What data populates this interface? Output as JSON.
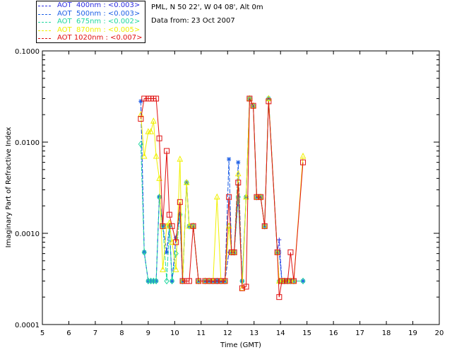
{
  "header": {
    "site": "PML, N 50 22', W 04 08', Alt 0m",
    "date": "Data from: 23 Oct 2007"
  },
  "legend": [
    {
      "label": "AOT  400nm : <0.003>",
      "color": "#2b2be0"
    },
    {
      "label": "AOT  500nm : <0.003>",
      "color": "#1e60e6"
    },
    {
      "label": "AOT  675nm : <0.002>",
      "color": "#20d8a0"
    },
    {
      "label": "AOT  870nm : <0.005>",
      "color": "#f0f000"
    },
    {
      "label": "AOT 1020nm : <0.007>",
      "color": "#e01010"
    }
  ],
  "chart_data": {
    "type": "line",
    "title": "",
    "xlabel": "Time (GMT)",
    "ylabel": "Imaginary Part of Refractive Index",
    "xlim": [
      5,
      20
    ],
    "ylim": [
      0.0001,
      0.1
    ],
    "yscale": "log",
    "xticks": [
      5,
      6,
      7,
      8,
      9,
      10,
      11,
      12,
      13,
      14,
      15,
      16,
      17,
      18,
      19,
      20
    ],
    "yticks": [
      {
        "value": 0.0001,
        "label": "0.0001"
      },
      {
        "value": 0.001,
        "label": "0.0010"
      },
      {
        "value": 0.01,
        "label": "0.0100"
      },
      {
        "value": 0.1,
        "label": "0.1000"
      }
    ],
    "grid": false,
    "legend_position": "above-left",
    "series": [
      {
        "name": "AOT  400nm : <0.003>",
        "color": "#2b2be0",
        "marker": "plus",
        "x": [
          8.72,
          8.85,
          9.0,
          9.1,
          9.2,
          9.3,
          9.42,
          9.55,
          9.7,
          9.8,
          9.9,
          10.05,
          10.2,
          10.3,
          10.45,
          10.55,
          10.7,
          10.9,
          11.15,
          11.3,
          11.45,
          11.6,
          11.75,
          11.9,
          12.05,
          12.15,
          12.25,
          12.4,
          12.55,
          12.7,
          12.83,
          12.97,
          13.1,
          13.25,
          13.4,
          13.55,
          13.88,
          13.95,
          14.05,
          14.15,
          14.27,
          14.38,
          14.5,
          14.85
        ],
        "y": [
          0.028,
          0.00062,
          0.0003,
          0.0003,
          0.0003,
          0.0003,
          0.0025,
          0.0012,
          0.00062,
          0.0012,
          0.0003,
          0.0009,
          0.0016,
          0.0003,
          0.0036,
          0.0012,
          0.0012,
          0.0003,
          0.0003,
          0.0003,
          0.0003,
          0.0003,
          0.0003,
          0.0003,
          0.00062,
          0.00062,
          0.00062,
          0.0025,
          0.0003,
          0.0025,
          0.03,
          0.025,
          0.0025,
          0.0025,
          0.0012,
          0.03,
          0.00062,
          0.00085,
          0.0003,
          0.0003,
          0.0003,
          0.0003,
          0.0003,
          0.0003
        ]
      },
      {
        "name": "AOT  500nm : <0.003>",
        "color": "#1e60e6",
        "marker": "asterisk",
        "x": [
          8.72,
          8.85,
          9.0,
          9.1,
          9.2,
          9.3,
          9.42,
          9.55,
          9.7,
          9.8,
          9.9,
          10.05,
          10.2,
          10.3,
          10.45,
          10.55,
          10.7,
          10.9,
          11.15,
          11.3,
          11.45,
          11.6,
          11.75,
          11.9,
          12.05,
          12.15,
          12.25,
          12.4,
          12.55,
          12.7,
          12.83,
          12.97,
          13.1,
          13.25,
          13.4,
          13.55,
          13.88,
          13.95,
          14.05,
          14.15,
          14.27,
          14.38,
          14.5,
          14.85
        ],
        "y": [
          0.028,
          0.00062,
          0.0003,
          0.0003,
          0.0003,
          0.0003,
          0.0025,
          0.0012,
          0.00062,
          0.0012,
          0.0003,
          0.0009,
          0.0016,
          0.0003,
          0.0036,
          0.0012,
          0.0012,
          0.0003,
          0.0003,
          0.0003,
          0.0003,
          0.0003,
          0.0003,
          0.0003,
          0.0065,
          0.00062,
          0.00062,
          0.006,
          0.0003,
          0.0025,
          0.03,
          0.025,
          0.0025,
          0.0025,
          0.0012,
          0.03,
          0.00062,
          0.00062,
          0.0003,
          0.0003,
          0.0003,
          0.0003,
          0.0003,
          0.0003
        ]
      },
      {
        "name": "AOT  675nm : <0.002>",
        "color": "#20d8a0",
        "marker": "diamond",
        "x": [
          8.72,
          8.85,
          9.0,
          9.1,
          9.2,
          9.3,
          9.42,
          9.55,
          9.7,
          9.8,
          9.9,
          10.05,
          10.2,
          10.3,
          10.45,
          10.55,
          10.7,
          10.9,
          11.15,
          11.3,
          11.45,
          11.6,
          11.75,
          11.9,
          12.05,
          12.15,
          12.25,
          12.4,
          12.55,
          12.7,
          12.83,
          12.97,
          13.1,
          13.25,
          13.4,
          13.55,
          13.88,
          13.95,
          14.05,
          14.15,
          14.27,
          14.38,
          14.5,
          14.85
        ],
        "y": [
          0.0095,
          0.00062,
          0.0003,
          0.0003,
          0.0003,
          0.0003,
          0.0025,
          0.0012,
          0.0003,
          0.0012,
          0.0003,
          0.0006,
          0.0016,
          0.0003,
          0.0036,
          0.0012,
          0.0012,
          0.0003,
          0.0003,
          0.0003,
          0.0003,
          0.0003,
          0.0003,
          0.0003,
          0.0012,
          0.00062,
          0.00062,
          0.0025,
          0.0003,
          0.0025,
          0.03,
          0.025,
          0.0025,
          0.0025,
          0.0012,
          0.03,
          0.00062,
          0.0003,
          0.0003,
          0.0003,
          0.0003,
          0.0003,
          0.0003,
          0.0003
        ]
      },
      {
        "name": "AOT  870nm : <0.005>",
        "color": "#f0f000",
        "marker": "triangle",
        "x": [
          8.72,
          8.85,
          9.0,
          9.1,
          9.2,
          9.3,
          9.42,
          9.55,
          9.7,
          9.8,
          9.9,
          10.05,
          10.2,
          10.3,
          10.45,
          10.55,
          10.7,
          10.9,
          11.15,
          11.3,
          11.45,
          11.6,
          11.75,
          11.9,
          12.05,
          12.15,
          12.25,
          12.4,
          12.55,
          12.7,
          12.83,
          12.97,
          13.1,
          13.25,
          13.4,
          13.55,
          13.88,
          13.95,
          14.05,
          14.15,
          14.27,
          14.38,
          14.5,
          14.85
        ],
        "y": [
          0.02,
          0.007,
          0.013,
          0.013,
          0.017,
          0.007,
          0.004,
          0.0004,
          0.0012,
          0.0013,
          0.0008,
          0.0004,
          0.0065,
          0.0003,
          0.0036,
          0.0012,
          0.0012,
          0.0003,
          0.0003,
          0.0003,
          0.0003,
          0.0025,
          0.0003,
          0.0003,
          0.0012,
          0.00062,
          0.00062,
          0.0045,
          0.00025,
          0.0025,
          0.03,
          0.025,
          0.0025,
          0.0025,
          0.0012,
          0.03,
          0.00062,
          0.0003,
          0.0003,
          0.0003,
          0.0003,
          0.0003,
          0.0003,
          0.007
        ]
      },
      {
        "name": "AOT 1020nm : <0.007>",
        "color": "#e01010",
        "marker": "square",
        "x": [
          8.72,
          8.85,
          9.0,
          9.1,
          9.2,
          9.3,
          9.42,
          9.55,
          9.7,
          9.8,
          9.9,
          10.05,
          10.2,
          10.3,
          10.45,
          10.55,
          10.7,
          10.9,
          11.15,
          11.3,
          11.45,
          11.6,
          11.75,
          11.9,
          12.05,
          12.15,
          12.25,
          12.4,
          12.55,
          12.7,
          12.83,
          12.97,
          13.1,
          13.25,
          13.4,
          13.55,
          13.88,
          13.95,
          14.05,
          14.15,
          14.27,
          14.38,
          14.5,
          14.85
        ],
        "y": [
          0.018,
          0.03,
          0.03,
          0.03,
          0.03,
          0.03,
          0.011,
          0.0012,
          0.008,
          0.0016,
          0.0012,
          0.0008,
          0.0022,
          0.0003,
          0.0003,
          0.0003,
          0.0012,
          0.0003,
          0.0003,
          0.0003,
          0.0003,
          0.0003,
          0.0003,
          0.0003,
          0.0025,
          0.00062,
          0.00062,
          0.0036,
          0.00025,
          0.00026,
          0.03,
          0.025,
          0.0025,
          0.0025,
          0.0012,
          0.028,
          0.00062,
          0.0002,
          0.0003,
          0.0003,
          0.0003,
          0.00062,
          0.0003,
          0.006
        ]
      }
    ]
  }
}
